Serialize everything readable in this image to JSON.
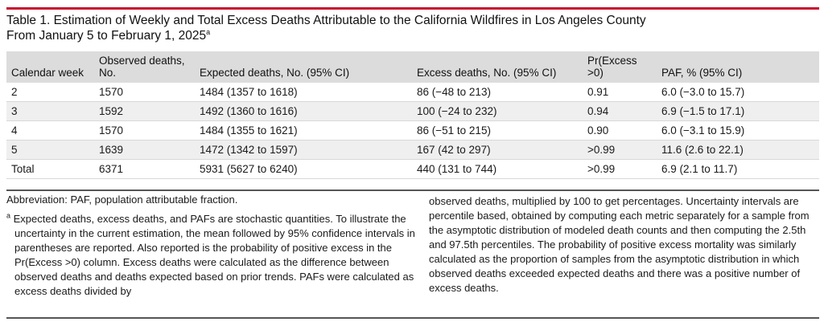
{
  "title": {
    "line1": "Table 1. Estimation of Weekly and Total Excess Deaths Attributable to the California Wildfires in Los Angeles County",
    "line2": "From January 5 to February 1, 2025",
    "marker": "a"
  },
  "table": {
    "headers": {
      "calendar_week": "Calendar week",
      "observed_l1": "Observed deaths,",
      "observed_l2": "No.",
      "expected": "Expected deaths, No. (95% CI)",
      "excess": "Excess deaths, No. (95% CI)",
      "pr": "Pr(Excess >0)",
      "paf": "PAF, % (95% CI)"
    },
    "rows": [
      [
        "2",
        "1570",
        "1484 (1357 to 1618)",
        "86 (−48 to 213)",
        "0.91",
        "6.0 (−3.0 to 15.7)"
      ],
      [
        "3",
        "1592",
        "1492 (1360 to 1616)",
        "100 (−24 to 232)",
        "0.94",
        "6.9 (−1.5 to 17.1)"
      ],
      [
        "4",
        "1570",
        "1484 (1355 to 1621)",
        "86 (−51 to 215)",
        "0.90",
        "6.0 (−3.1 to 15.9)"
      ],
      [
        "5",
        "1639",
        "1472 (1342 to 1597)",
        "167 (42 to 297)",
        ">0.99",
        "11.6 (2.6 to 22.1)"
      ],
      [
        "Total",
        "6371",
        "5931 (5627 to 6240)",
        "440 (131 to 744)",
        ">0.99",
        "6.9 (2.1 to 11.7)"
      ]
    ]
  },
  "notes": {
    "abbreviation": "Abbreviation: PAF, population attributable fraction.",
    "footnote_marker": "a",
    "footnote_left": "Expected deaths, excess deaths, and PAFs are stochastic quantities. To illustrate the uncertainty in the current estimation, the mean followed by 95% confidence intervals in parentheses are reported. Also reported is the probability of positive excess in the Pr(Excess >0) column. Excess deaths were calculated as the difference between observed deaths and deaths expected based on prior trends. PAFs were calculated as excess deaths divided by",
    "footnote_right": "observed deaths, multiplied by 100 to get percentages. Uncertainty intervals are percentile based, obtained by computing each metric separately for a sample from the asymptotic distribution of modeled death counts and then computing the 2.5th and 97.5th percentiles. The probability of positive excess mortality was similarly calculated as the proportion of samples from the asymptotic distribution in which observed deaths exceeded expected deaths and there was a positive number of excess deaths."
  },
  "colors": {
    "accent_rule": "#c8102e",
    "header_bg": "#dcdcdc",
    "stripe_bg": "#efefef"
  }
}
